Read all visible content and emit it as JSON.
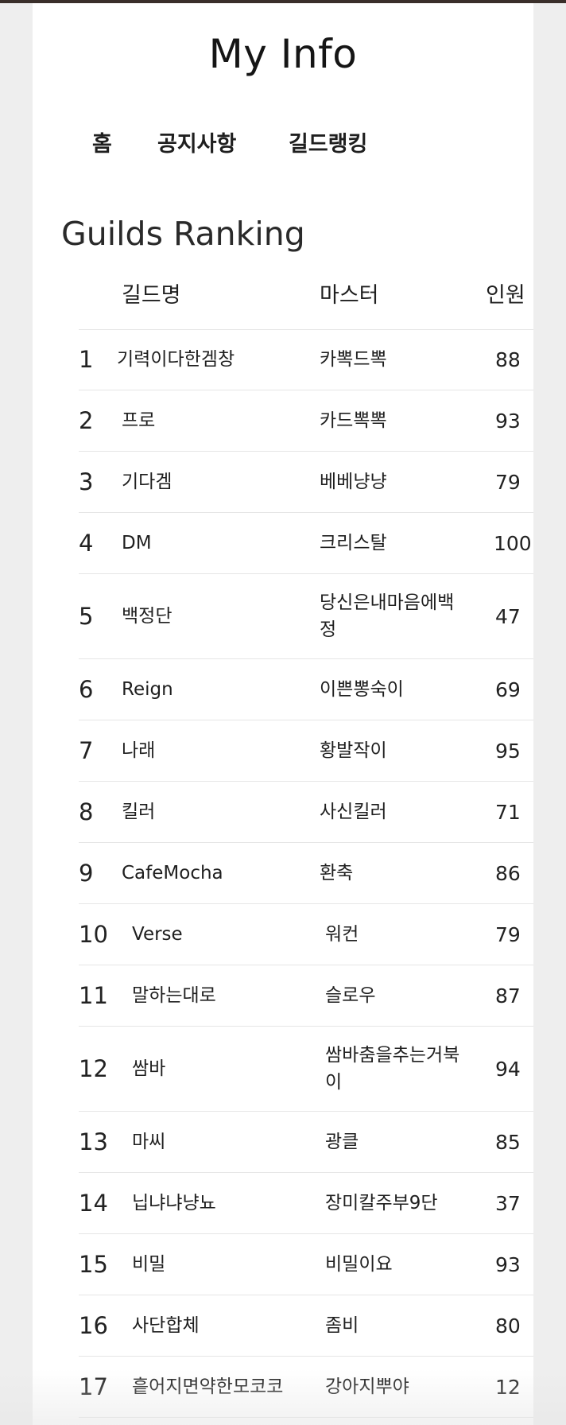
{
  "header": {
    "site_title": "My Info"
  },
  "nav": {
    "items": [
      {
        "label": "홈"
      },
      {
        "label": "공지사항"
      },
      {
        "label": "길드랭킹"
      }
    ]
  },
  "ranking": {
    "title": "Guilds Ranking",
    "columns": {
      "guild": "길드명",
      "master": "마스터",
      "members": "인원"
    },
    "rows": [
      {
        "rank": "1",
        "guild": "기력이다한겜창",
        "master": "카뽁드뽁",
        "members": "88"
      },
      {
        "rank": "2",
        "guild": "프로",
        "master": "카드뽁뽁",
        "members": "93"
      },
      {
        "rank": "3",
        "guild": "기다겜",
        "master": "베베냥냥",
        "members": "79"
      },
      {
        "rank": "4",
        "guild": "DM",
        "master": "크리스탈",
        "members": "100"
      },
      {
        "rank": "5",
        "guild": "백정단",
        "master": "당신은내마음에백정",
        "members": "47"
      },
      {
        "rank": "6",
        "guild": "Reign",
        "master": "이쁜뽕숙이",
        "members": "69"
      },
      {
        "rank": "7",
        "guild": "나래",
        "master": "황발작이",
        "members": "95"
      },
      {
        "rank": "8",
        "guild": "킬러",
        "master": "사신킬러",
        "members": "71"
      },
      {
        "rank": "9",
        "guild": "CafeMocha",
        "master": "환축",
        "members": "86"
      },
      {
        "rank": "10",
        "guild": "Verse",
        "master": "워컨",
        "members": "79"
      },
      {
        "rank": "11",
        "guild": "말하는대로",
        "master": "슬로우",
        "members": "87"
      },
      {
        "rank": "12",
        "guild": "쌈바",
        "master": "쌈바춤을추는거북이",
        "members": "94"
      },
      {
        "rank": "13",
        "guild": "마씨",
        "master": "광클",
        "members": "85"
      },
      {
        "rank": "14",
        "guild": "닙냐냐냥뇨",
        "master": "장미칼주부9단",
        "members": "37"
      },
      {
        "rank": "15",
        "guild": "비밀",
        "master": "비밀이요",
        "members": "93"
      },
      {
        "rank": "16",
        "guild": "사단합체",
        "master": "좀비",
        "members": "80"
      },
      {
        "rank": "17",
        "guild": "흩어지면약한모코코",
        "master": "강아지뿌야",
        "members": "12"
      }
    ]
  }
}
